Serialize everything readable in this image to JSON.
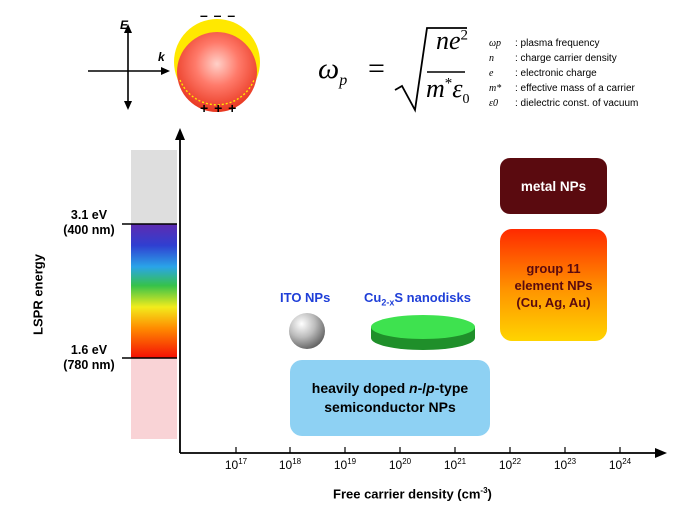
{
  "particle_sketch": {
    "field_label": "E",
    "wave_label": "k",
    "charge_top": "– – –",
    "charge_bottom": "+ + +"
  },
  "formula": {
    "lhs": "ω",
    "lhs_sub": "p",
    "equals": "=",
    "numerator": "ne",
    "numerator_sup": "2",
    "denominator": "m",
    "denominator_sup": "*",
    "epsilon": "ε",
    "epsilon_sub": "0"
  },
  "legend": [
    {
      "symbol": "ωp",
      "description": ": plasma frequency"
    },
    {
      "symbol": "n",
      "description": ": charge carrier density"
    },
    {
      "symbol": "e",
      "description": ": electronic charge"
    },
    {
      "symbol": "m*",
      "description": ": effective mass of a carrier"
    },
    {
      "symbol": "ε0",
      "description": ": dielectric const. of vacuum"
    }
  ],
  "y_axis": {
    "label": "LSPR energy",
    "upper_mark": {
      "energy": "3.1 eV",
      "wavelength": "(400 nm)"
    },
    "lower_mark": {
      "energy": "1.6 eV",
      "wavelength": "(780 nm)"
    }
  },
  "x_axis": {
    "label": "Free carrier density (cm",
    "label_sup": "-3",
    "label_close": ")",
    "ticks": [
      {
        "base": "10",
        "exp": "17"
      },
      {
        "base": "10",
        "exp": "18"
      },
      {
        "base": "10",
        "exp": "19"
      },
      {
        "base": "10",
        "exp": "20"
      },
      {
        "base": "10",
        "exp": "21"
      },
      {
        "base": "10",
        "exp": "22"
      },
      {
        "base": "10",
        "exp": "23"
      },
      {
        "base": "10",
        "exp": "24"
      }
    ]
  },
  "regions": {
    "metal": "metal NPs",
    "group11": [
      "group 11",
      "element NPs",
      "(Cu, Ag, Au)"
    ],
    "semiconductor": {
      "prefix": "heavily doped ",
      "n": "n",
      "dash": "-/",
      "p": "p",
      "suffix": "-type",
      "line2": "semiconductor NPs"
    }
  },
  "examples": {
    "ito": "ITO NPs",
    "cu_base": "Cu",
    "cu_sub": "2-x",
    "cu_rest": "S nanodisks"
  },
  "colors": {
    "metal_box": "#5a0a0f",
    "group11_top": "#ff2a00",
    "group11_bottom": "#ffd400",
    "semiconductor_box": "#8ed1f3",
    "example_label": "#1f3fd8",
    "nanodisk": "#33dd44",
    "near_ir_band": "#f9d3d6",
    "uv_band": "#dedede"
  }
}
